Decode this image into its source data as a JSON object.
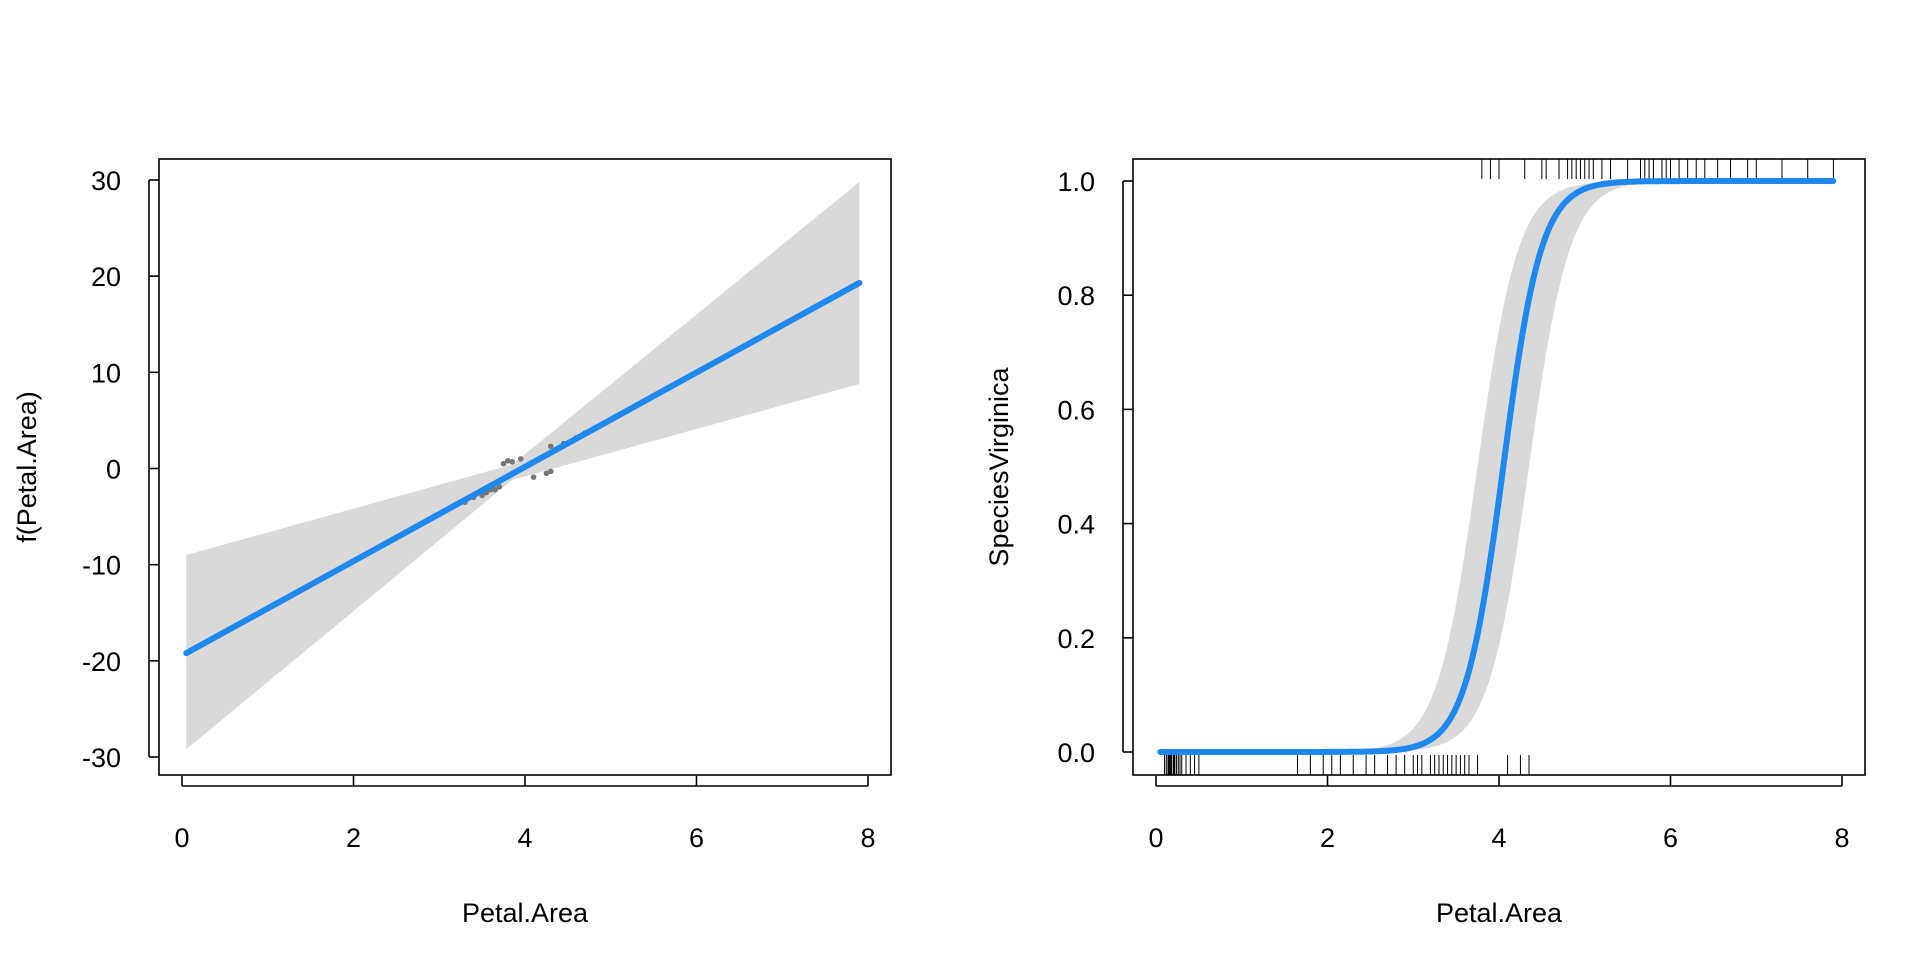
{
  "chart_data": [
    {
      "type": "line",
      "panel": "left",
      "xlabel": "Petal.Area",
      "ylabel": "f(Petal.Area)",
      "xlim": [
        0,
        8
      ],
      "ylim": [
        -30,
        30
      ],
      "xticks": [
        0,
        2,
        4,
        6,
        8
      ],
      "yticks": [
        -30,
        -20,
        -10,
        0,
        10,
        20,
        30
      ],
      "xtick_labels": [
        "0",
        "2",
        "4",
        "6",
        "8"
      ],
      "ytick_labels": [
        "-30",
        "-20",
        "-10",
        "0",
        "10",
        "20",
        "30"
      ],
      "colors": {
        "line": "#1e88ee",
        "band": "#d9d9d9",
        "points": "#777777"
      },
      "fit": {
        "x": [
          0.05,
          7.9
        ],
        "y": [
          -19.2,
          19.3
        ]
      },
      "band": {
        "x": [
          0.05,
          3.85,
          7.9
        ],
        "lower": [
          -29.2,
          -1.2,
          8.8
        ],
        "upper": [
          -9.0,
          0.4,
          29.8
        ]
      },
      "partial_residuals": {
        "x": [
          3.3,
          3.4,
          3.5,
          3.55,
          3.6,
          3.65,
          3.7,
          3.75,
          3.8,
          3.85,
          3.95,
          4.1,
          4.25,
          4.3,
          4.3,
          4.45,
          4.6,
          4.7,
          4.8
        ],
        "y": [
          -3.5,
          -3.0,
          -2.8,
          -2.5,
          -2.2,
          -2.2,
          -1.9,
          0.5,
          0.8,
          0.7,
          1.0,
          -0.9,
          -0.5,
          -0.3,
          2.3,
          2.6,
          3.2,
          3.7,
          4.1
        ]
      }
    },
    {
      "type": "line",
      "panel": "right",
      "xlabel": "Petal.Area",
      "ylabel": "SpeciesVirginica",
      "xlim": [
        0,
        8
      ],
      "ylim": [
        0,
        1
      ],
      "xticks": [
        0,
        2,
        4,
        6,
        8
      ],
      "yticks": [
        0,
        0.2,
        0.4,
        0.6,
        0.8,
        1.0
      ],
      "xtick_labels": [
        "0",
        "2",
        "4",
        "6",
        "8"
      ],
      "ytick_labels": [
        "0.0",
        "0.2",
        "0.4",
        "0.6",
        "0.8",
        "1.0"
      ],
      "colors": {
        "line": "#1e88ee",
        "band": "#d9d9d9",
        "rug": "#000000"
      },
      "logistic": {
        "midpoint": 4.05,
        "slope": 4.5,
        "band_lower_midpoint": 4.35,
        "band_upper_midpoint": 3.75,
        "band_slope": 4.2,
        "x_from": 0.05,
        "x_to": 7.9
      },
      "rug_top": [
        3.8,
        3.9,
        4.0,
        4.3,
        4.5,
        4.55,
        4.7,
        4.8,
        4.85,
        4.9,
        4.95,
        5.0,
        5.05,
        5.1,
        5.2,
        5.3,
        5.5,
        5.65,
        5.7,
        5.75,
        5.8,
        5.9,
        5.95,
        6.0,
        6.1,
        6.2,
        6.3,
        6.4,
        6.55,
        6.7,
        6.9,
        7.0,
        7.3,
        7.6,
        7.9
      ],
      "rug_bottom": [
        0.1,
        0.12,
        0.14,
        0.15,
        0.16,
        0.17,
        0.18,
        0.2,
        0.21,
        0.22,
        0.24,
        0.26,
        0.28,
        0.3,
        0.35,
        0.4,
        0.45,
        0.5,
        1.65,
        1.8,
        1.95,
        2.05,
        2.15,
        2.3,
        2.45,
        2.55,
        2.7,
        2.8,
        2.9,
        3.0,
        3.05,
        3.1,
        3.2,
        3.25,
        3.3,
        3.35,
        3.4,
        3.45,
        3.5,
        3.55,
        3.6,
        3.65,
        3.75,
        4.1,
        4.25,
        4.35
      ]
    }
  ]
}
